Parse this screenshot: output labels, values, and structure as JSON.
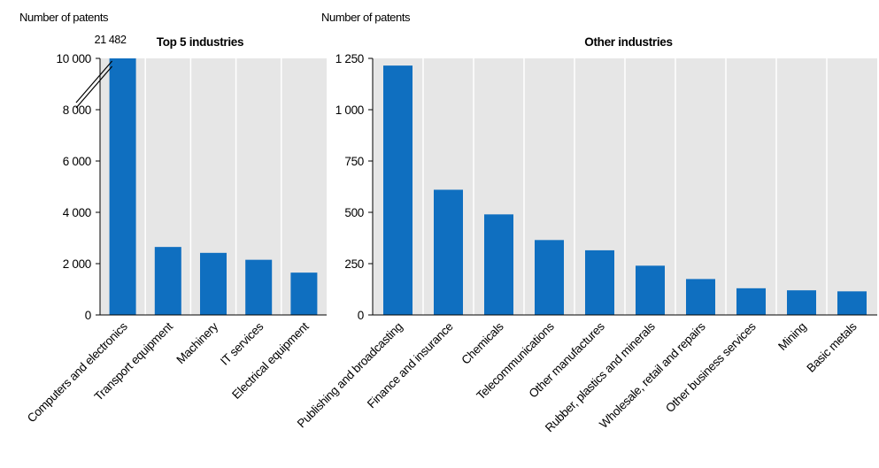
{
  "colors": {
    "bar": "#0f6fc0",
    "panel_bg": "#e6e6e6",
    "grid": "#ffffff",
    "axis": "#000000"
  },
  "chart_data": [
    {
      "type": "bar",
      "title": "Top 5 industries",
      "ylabel": "Number of patents",
      "ylim": [
        0,
        10000
      ],
      "yticks": [
        0,
        2000,
        4000,
        6000,
        8000,
        10000
      ],
      "ytick_labels": [
        "0",
        "2 000",
        "4 000",
        "6 000",
        "8 000",
        "10 000"
      ],
      "axis_break": true,
      "categories": [
        "Computers and electronics",
        "Transport equipment",
        "Machinery",
        "IT services",
        "Electrical equipment"
      ],
      "values": [
        21482,
        2650,
        2420,
        2150,
        1650
      ],
      "data_labels": [
        "21 482",
        "",
        "",
        "",
        ""
      ],
      "grid": true
    },
    {
      "type": "bar",
      "title": "Other industries",
      "ylabel": "Number of patents",
      "ylim": [
        0,
        1250
      ],
      "yticks": [
        0,
        250,
        500,
        750,
        1000,
        1250
      ],
      "ytick_labels": [
        "0",
        "250",
        "500",
        "750",
        "1 000",
        "1 250"
      ],
      "categories": [
        "Publishing and broadcasting",
        "Finance and insurance",
        "Chemicals",
        "Telecommunications",
        "Other manufactures",
        "Rubber, plastics and minerals",
        "Wholesale, retail and repairs",
        "Other business services",
        "Mining",
        "Basic metals"
      ],
      "values": [
        1215,
        610,
        490,
        365,
        315,
        240,
        175,
        130,
        120,
        115
      ],
      "grid": true
    }
  ]
}
